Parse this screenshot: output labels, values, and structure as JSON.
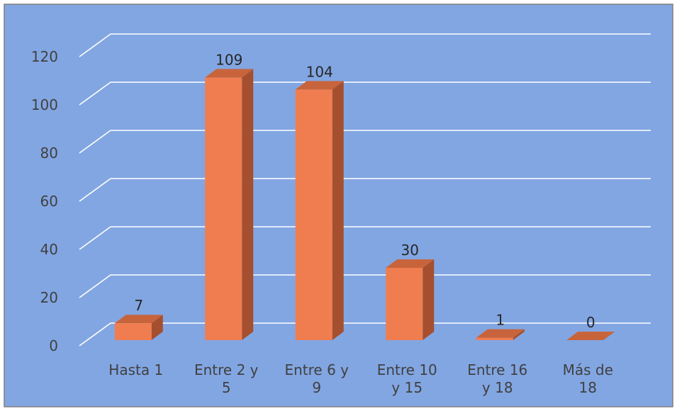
{
  "chart_data": {
    "type": "bar",
    "title": "",
    "xlabel": "",
    "ylabel": "",
    "categories": [
      [
        "Hasta 1"
      ],
      [
        "Entre 2 y",
        "5"
      ],
      [
        "Entre 6 y",
        "9"
      ],
      [
        "Entre 10",
        "y 15"
      ],
      [
        "Entre 16",
        "y 18"
      ],
      [
        "Más de",
        "18"
      ]
    ],
    "values": [
      7,
      109,
      104,
      30,
      1,
      0
    ],
    "ylim": [
      0,
      120
    ],
    "yticks": [
      0,
      20,
      40,
      60,
      80,
      100,
      120
    ],
    "grid": true,
    "data_labels": true,
    "style": "3d-column"
  },
  "colors": {
    "plot_background": "#82a6e2",
    "outer_border": "#7f7f7f",
    "bar_front": "#f07d50",
    "bar_side": "#a54f2e",
    "bar_top": "#c8643c",
    "gridline": "#ffffff"
  }
}
